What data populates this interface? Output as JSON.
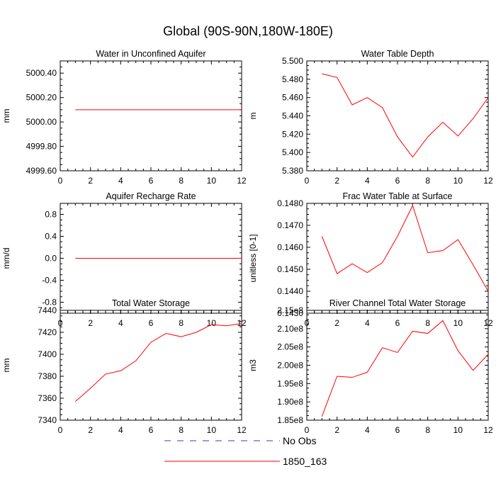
{
  "page": {
    "title": "Global (90S-90N,180W-180E)"
  },
  "legend": {
    "placement": "bottom-center",
    "entries": [
      {
        "label": "No Obs",
        "color": "#3b3bb8",
        "style": "dashed"
      },
      {
        "label": "1850_163",
        "color": "#ff0000",
        "style": "solid"
      }
    ]
  },
  "chart_data": [
    {
      "type": "line",
      "title": "Water in Unconfined Aquifer",
      "xlabel": "",
      "ylabel": "mm",
      "xlim": [
        0,
        12
      ],
      "ylim": [
        4999.6,
        5000.5
      ],
      "xticks": [
        0,
        2,
        4,
        6,
        8,
        10,
        12
      ],
      "xtick_labels": [
        "0",
        "2",
        "4",
        "6",
        "8",
        "10",
        "12"
      ],
      "yticks": [
        4999.6,
        4999.8,
        5000.0,
        5000.2,
        5000.4
      ],
      "ytick_labels": [
        "4999.60",
        "4999.80",
        "5000.00",
        "5000.20",
        "5000.40"
      ],
      "grid": false,
      "x": [
        1,
        2,
        3,
        4,
        5,
        6,
        7,
        8,
        9,
        10,
        11,
        12
      ],
      "series": [
        {
          "name": "1850_163",
          "color": "#ff0000",
          "values": [
            5000.1,
            5000.1,
            5000.1,
            5000.1,
            5000.1,
            5000.1,
            5000.1,
            5000.1,
            5000.1,
            5000.1,
            5000.1,
            5000.1
          ]
        }
      ]
    },
    {
      "type": "line",
      "title": "Water Table Depth",
      "xlabel": "",
      "ylabel": "m",
      "xlim": [
        0,
        12
      ],
      "ylim": [
        5.38,
        5.5
      ],
      "xticks": [
        0,
        2,
        4,
        6,
        8,
        10,
        12
      ],
      "xtick_labels": [
        "0",
        "2",
        "4",
        "6",
        "8",
        "10",
        "12"
      ],
      "yticks": [
        5.38,
        5.4,
        5.42,
        5.44,
        5.46,
        5.48,
        5.5
      ],
      "ytick_labels": [
        "5.380",
        "5.400",
        "5.420",
        "5.440",
        "5.460",
        "5.480",
        "5.500"
      ],
      "grid": false,
      "x": [
        1,
        2,
        3,
        4,
        5,
        6,
        7,
        8,
        9,
        10,
        11,
        12
      ],
      "series": [
        {
          "name": "1850_163",
          "color": "#ff0000",
          "values": [
            5.486,
            5.482,
            5.452,
            5.46,
            5.449,
            5.417,
            5.395,
            5.417,
            5.433,
            5.418,
            5.437,
            5.46
          ]
        }
      ]
    },
    {
      "type": "line",
      "title": "Aquifer Recharge Rate",
      "xlabel": "",
      "ylabel": "mm/d",
      "xlim": [
        0,
        12
      ],
      "ylim": [
        -1.0,
        1.0
      ],
      "xticks": [
        0,
        2,
        4,
        6,
        8,
        10,
        12
      ],
      "xtick_labels": [
        "0",
        "2",
        "4",
        "6",
        "8",
        "10",
        "12"
      ],
      "yticks": [
        -0.8,
        -0.4,
        0.0,
        0.4,
        0.8
      ],
      "ytick_labels": [
        "-0.8",
        "-0.4",
        "0.0",
        "0.4",
        "0.8"
      ],
      "grid": false,
      "x": [
        1,
        2,
        3,
        4,
        5,
        6,
        7,
        8,
        9,
        10,
        11,
        12
      ],
      "series": [
        {
          "name": "1850_163",
          "color": "#ff0000",
          "values": [
            0,
            0,
            0,
            0,
            0,
            0,
            0,
            0,
            0,
            0,
            0,
            0
          ]
        }
      ]
    },
    {
      "type": "line",
      "title": "Frac Water Table at Surface",
      "xlabel": "",
      "ylabel": "unitless [0-1]",
      "xlim": [
        0,
        12
      ],
      "ylim": [
        0.143,
        0.148
      ],
      "xticks": [
        0,
        2,
        4,
        6,
        8,
        10,
        12
      ],
      "xtick_labels": [
        "0",
        "2",
        "4",
        "6",
        "8",
        "10",
        "12"
      ],
      "yticks": [
        0.143,
        0.144,
        0.145,
        0.146,
        0.147,
        0.148
      ],
      "ytick_labels": [
        "0.1430",
        "0.1440",
        "0.1450",
        "0.1460",
        "0.1470",
        "0.1480"
      ],
      "grid": false,
      "x": [
        1,
        2,
        3,
        4,
        5,
        6,
        7,
        8,
        9,
        10,
        11,
        12
      ],
      "series": [
        {
          "name": "1850_163",
          "color": "#ff0000",
          "values": [
            0.1465,
            0.1448,
            0.14525,
            0.14485,
            0.1453,
            0.1465,
            0.1479,
            0.14575,
            0.14585,
            0.14635,
            0.1452,
            0.144
          ]
        }
      ]
    },
    {
      "type": "line",
      "title": "Total Water Storage",
      "xlabel": "",
      "ylabel": "mm",
      "xlim": [
        0,
        12
      ],
      "ylim": [
        7340,
        7440
      ],
      "xticks": [
        0,
        2,
        4,
        6,
        8,
        10,
        12
      ],
      "xtick_labels": [
        "0",
        "2",
        "4",
        "6",
        "8",
        "10",
        "12"
      ],
      "yticks": [
        7340,
        7360,
        7380,
        7400,
        7420,
        7440
      ],
      "ytick_labels": [
        "7340",
        "7360",
        "7380",
        "7400",
        "7420",
        "7440"
      ],
      "grid": false,
      "x": [
        1,
        2,
        3,
        4,
        5,
        6,
        7,
        8,
        9,
        10,
        11,
        12
      ],
      "series": [
        {
          "name": "1850_163",
          "color": "#ff0000",
          "values": [
            7357,
            7369,
            7382,
            7385,
            7394,
            7411,
            7419,
            7416,
            7420,
            7427,
            7426,
            7428
          ]
        }
      ]
    },
    {
      "type": "line",
      "title": "River Channel Total Water Storage",
      "xlabel": "",
      "ylabel": "m3",
      "xlim": [
        0,
        12
      ],
      "ylim": [
        185000000,
        215000000
      ],
      "xticks": [
        0,
        2,
        4,
        6,
        8,
        10,
        12
      ],
      "xtick_labels": [
        "0",
        "2",
        "4",
        "6",
        "8",
        "10",
        "12"
      ],
      "yticks": [
        185000000,
        190000000,
        195000000,
        200000000,
        205000000,
        210000000,
        215000000
      ],
      "ytick_labels": [
        "1.85e8",
        "1.90e8",
        "1.95e8",
        "2.00e8",
        "2.05e8",
        "2.10e8",
        "2.15e8"
      ],
      "grid": false,
      "x": [
        1,
        2,
        3,
        4,
        5,
        6,
        7,
        8,
        9,
        10,
        11,
        12
      ],
      "series": [
        {
          "name": "1850_163",
          "color": "#ff0000",
          "values": [
            186000000,
            197000000,
            196700000,
            198100000,
            204800000,
            203500000,
            209300000,
            208700000,
            212200000,
            204000000,
            198600000,
            203000000
          ]
        }
      ]
    }
  ]
}
